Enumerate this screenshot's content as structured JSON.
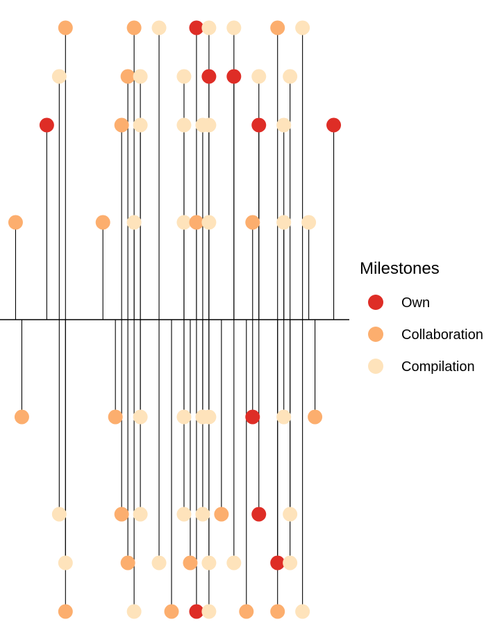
{
  "colors": {
    "own": "#de2d26",
    "collaboration": "#fcae6e",
    "compilation": "#fee3bb",
    "stem": "#000000",
    "baseline": "#000000"
  },
  "chart_data": {
    "type": "scatter",
    "subtype": "lollipop-timeline",
    "title": "",
    "xlabel": "",
    "ylabel": "",
    "grid": false,
    "axes_visible": false,
    "baseline_y": 0,
    "xlim": [
      0,
      56
    ],
    "ylim": [
      -6,
      6
    ],
    "legend": {
      "title": "Milestones",
      "placement": "right",
      "entries": [
        {
          "key": "own",
          "label": "Own"
        },
        {
          "key": "collaboration",
          "label": "Collaboration"
        },
        {
          "key": "compilation",
          "label": "Compilation"
        }
      ]
    },
    "points": [
      {
        "x": 2.5,
        "y": 2,
        "type": "collaboration"
      },
      {
        "x": 3.5,
        "y": -2,
        "type": "collaboration"
      },
      {
        "x": 7.5,
        "y": 4,
        "type": "own"
      },
      {
        "x": 9.5,
        "y": 5,
        "type": "compilation"
      },
      {
        "x": 9.5,
        "y": -4,
        "type": "compilation"
      },
      {
        "x": 10.5,
        "y": 6,
        "type": "collaboration"
      },
      {
        "x": 10.5,
        "y": -5,
        "type": "compilation"
      },
      {
        "x": 10.5,
        "y": -6,
        "type": "collaboration"
      },
      {
        "x": 16.5,
        "y": 2,
        "type": "collaboration"
      },
      {
        "x": 18.5,
        "y": -2,
        "type": "collaboration"
      },
      {
        "x": 19.5,
        "y": 4,
        "type": "collaboration"
      },
      {
        "x": 19.5,
        "y": -4,
        "type": "collaboration"
      },
      {
        "x": 20.5,
        "y": 5,
        "type": "collaboration"
      },
      {
        "x": 20.5,
        "y": -5,
        "type": "collaboration"
      },
      {
        "x": 21.5,
        "y": 6,
        "type": "collaboration"
      },
      {
        "x": 21.5,
        "y": 2,
        "type": "compilation"
      },
      {
        "x": 21.5,
        "y": -6,
        "type": "compilation"
      },
      {
        "x": 22.5,
        "y": 5,
        "type": "compilation"
      },
      {
        "x": 22.5,
        "y": 4,
        "type": "compilation"
      },
      {
        "x": 22.5,
        "y": -2,
        "type": "compilation"
      },
      {
        "x": 22.5,
        "y": -4,
        "type": "compilation"
      },
      {
        "x": 25.5,
        "y": 6,
        "type": "compilation"
      },
      {
        "x": 25.5,
        "y": -5,
        "type": "compilation"
      },
      {
        "x": 27.5,
        "y": -6,
        "type": "collaboration"
      },
      {
        "x": 29.5,
        "y": 5,
        "type": "compilation"
      },
      {
        "x": 29.5,
        "y": 4,
        "type": "compilation"
      },
      {
        "x": 29.5,
        "y": 2,
        "type": "compilation"
      },
      {
        "x": 29.5,
        "y": -2,
        "type": "compilation"
      },
      {
        "x": 29.5,
        "y": -4,
        "type": "compilation"
      },
      {
        "x": 30.5,
        "y": -5,
        "type": "collaboration"
      },
      {
        "x": 31.5,
        "y": 6,
        "type": "own"
      },
      {
        "x": 31.5,
        "y": 2,
        "type": "collaboration"
      },
      {
        "x": 31.5,
        "y": -6,
        "type": "own"
      },
      {
        "x": 32.5,
        "y": 4,
        "type": "compilation"
      },
      {
        "x": 32.5,
        "y": -2,
        "type": "compilation"
      },
      {
        "x": 32.5,
        "y": -4,
        "type": "compilation"
      },
      {
        "x": 33.5,
        "y": 6,
        "type": "compilation"
      },
      {
        "x": 33.5,
        "y": 5,
        "type": "own"
      },
      {
        "x": 33.5,
        "y": 4,
        "type": "compilation"
      },
      {
        "x": 33.5,
        "y": 2,
        "type": "compilation"
      },
      {
        "x": 33.5,
        "y": -2,
        "type": "compilation"
      },
      {
        "x": 33.5,
        "y": -5,
        "type": "compilation"
      },
      {
        "x": 33.5,
        "y": -6,
        "type": "compilation"
      },
      {
        "x": 35.5,
        "y": -4,
        "type": "collaboration"
      },
      {
        "x": 37.5,
        "y": 6,
        "type": "compilation"
      },
      {
        "x": 37.5,
        "y": 5,
        "type": "own"
      },
      {
        "x": 37.5,
        "y": -5,
        "type": "compilation"
      },
      {
        "x": 39.5,
        "y": -6,
        "type": "collaboration"
      },
      {
        "x": 40.5,
        "y": 2,
        "type": "collaboration"
      },
      {
        "x": 40.5,
        "y": -2,
        "type": "own"
      },
      {
        "x": 41.5,
        "y": 5,
        "type": "compilation"
      },
      {
        "x": 41.5,
        "y": 4,
        "type": "own"
      },
      {
        "x": 41.5,
        "y": -4,
        "type": "own"
      },
      {
        "x": 44.5,
        "y": 6,
        "type": "collaboration"
      },
      {
        "x": 44.5,
        "y": -5,
        "type": "own"
      },
      {
        "x": 44.5,
        "y": -6,
        "type": "collaboration"
      },
      {
        "x": 45.5,
        "y": 4,
        "type": "compilation"
      },
      {
        "x": 45.5,
        "y": 2,
        "type": "compilation"
      },
      {
        "x": 45.5,
        "y": -2,
        "type": "compilation"
      },
      {
        "x": 46.5,
        "y": 5,
        "type": "compilation"
      },
      {
        "x": 46.5,
        "y": -4,
        "type": "compilation"
      },
      {
        "x": 46.5,
        "y": -5,
        "type": "compilation"
      },
      {
        "x": 48.5,
        "y": 6,
        "type": "compilation"
      },
      {
        "x": 48.5,
        "y": -6,
        "type": "compilation"
      },
      {
        "x": 49.5,
        "y": 2,
        "type": "compilation"
      },
      {
        "x": 50.5,
        "y": -2,
        "type": "collaboration"
      },
      {
        "x": 53.5,
        "y": 4,
        "type": "own"
      }
    ]
  }
}
